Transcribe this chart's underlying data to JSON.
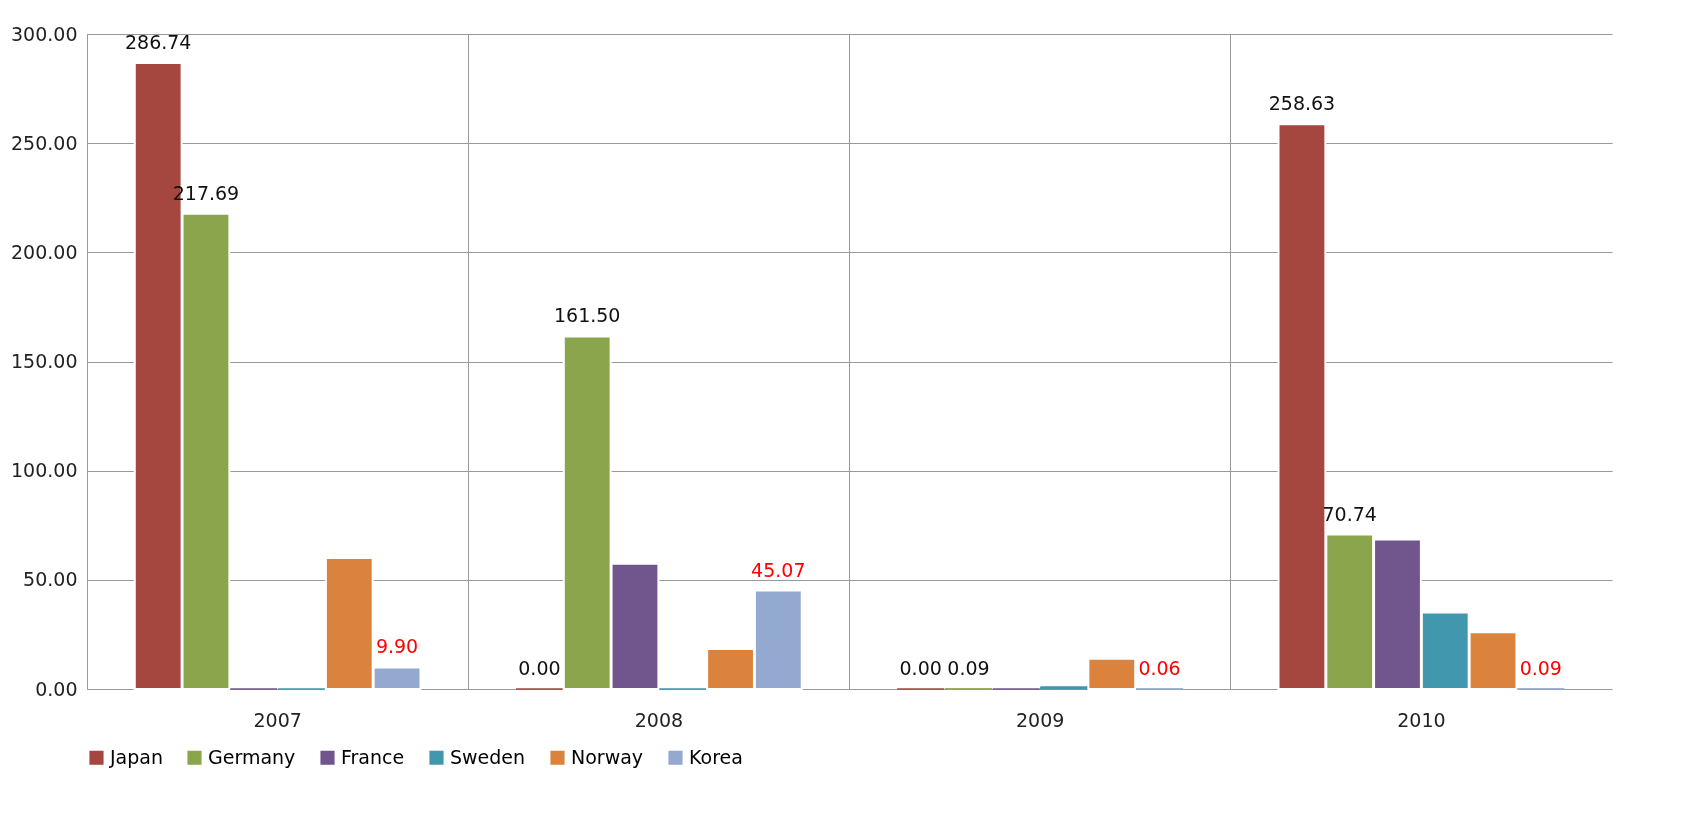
{
  "chart_data": {
    "type": "bar",
    "categories": [
      "2007",
      "2008",
      "2009",
      "2010"
    ],
    "series": [
      {
        "name": "Japan",
        "color": "#a5463f",
        "values": [
          286.74,
          0.0,
          0.0,
          258.63
        ],
        "value_labels": [
          "286.74",
          "0.00",
          "0.00",
          "258.63"
        ]
      },
      {
        "name": "Germany",
        "color": "#8aa54b",
        "values": [
          217.69,
          161.5,
          0.09,
          70.74
        ],
        "value_labels": [
          "217.69",
          "161.50",
          "0.09",
          "70.74"
        ]
      },
      {
        "name": "France",
        "color": "#70568d",
        "values": [
          0,
          57.4,
          0,
          68.5
        ]
      },
      {
        "name": "Sweden",
        "color": "#4197ae",
        "values": [
          0,
          0,
          1,
          35
        ]
      },
      {
        "name": "Norway",
        "color": "#db823d",
        "values": [
          60,
          18.3,
          13.9,
          26
        ]
      },
      {
        "name": "Korea",
        "color": "#93a9cf",
        "values": [
          9.9,
          45.07,
          0.06,
          0.09
        ],
        "value_labels": [
          "9.90",
          "45.07",
          "0.06",
          "0.09"
        ]
      }
    ],
    "ylim": [
      0,
      300
    ],
    "yticks": [
      {
        "value": 0,
        "label": "0.00"
      },
      {
        "value": 50,
        "label": "50.00"
      },
      {
        "value": 100,
        "label": "100.00"
      },
      {
        "value": 150,
        "label": "150.00"
      },
      {
        "value": 200,
        "label": "200.00"
      },
      {
        "value": 250,
        "label": "250.00"
      },
      {
        "value": 300,
        "label": "300.00"
      }
    ],
    "grid": true,
    "legend": "bottom"
  }
}
